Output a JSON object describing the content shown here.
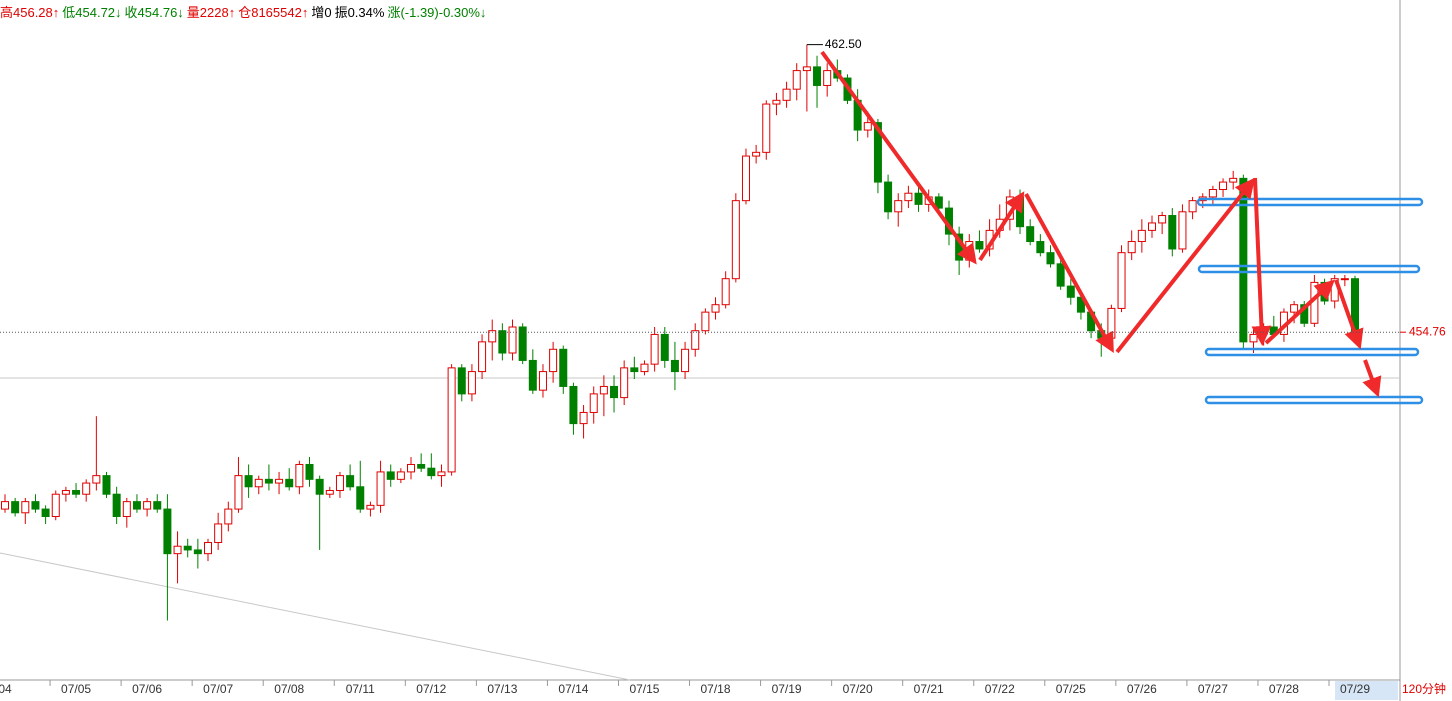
{
  "chart_data": {
    "type": "candlestick",
    "header": [
      {
        "text": "高456.28↑",
        "color": "#e00000"
      },
      {
        "text": "低454.72↓",
        "color": "#008000"
      },
      {
        "text": "收454.76↓",
        "color": "#008000"
      },
      {
        "text": "量2228↑",
        "color": "#e00000"
      },
      {
        "text": "仓8165542↑",
        "color": "#e00000"
      },
      {
        "text": "增0",
        "color": "#000000"
      },
      {
        "text": "振0.34%",
        "color": "#000000"
      },
      {
        "text": "涨(-1.39)-0.30%↓",
        "color": "#008000"
      }
    ],
    "period": "120分钟",
    "max_label": {
      "value": 462.5,
      "label": "462.50"
    },
    "up_color": "#e00000",
    "down_color": "#008000",
    "ylim": [
      445.4,
      463.7
    ],
    "categories": [
      "04",
      null,
      null,
      null,
      null,
      null,
      null,
      "07/05",
      null,
      null,
      null,
      null,
      null,
      null,
      "07/06",
      null,
      null,
      null,
      null,
      null,
      null,
      "07/07",
      null,
      null,
      null,
      null,
      null,
      null,
      "07/08",
      null,
      null,
      null,
      null,
      null,
      null,
      "07/11",
      null,
      null,
      null,
      null,
      null,
      null,
      "07/12",
      null,
      null,
      null,
      null,
      null,
      null,
      "07/13",
      null,
      null,
      null,
      null,
      null,
      null,
      "07/14",
      null,
      null,
      null,
      null,
      null,
      null,
      "07/15",
      null,
      null,
      null,
      null,
      null,
      null,
      "07/18",
      null,
      null,
      null,
      null,
      null,
      null,
      "07/19",
      null,
      null,
      null,
      null,
      null,
      null,
      "07/20",
      null,
      null,
      null,
      null,
      null,
      null,
      "07/21",
      null,
      null,
      null,
      null,
      null,
      null,
      "07/22",
      null,
      null,
      null,
      null,
      null,
      null,
      "07/25",
      null,
      null,
      null,
      null,
      null,
      null,
      "07/26",
      null,
      null,
      null,
      null,
      null,
      null,
      "07/27",
      null,
      null,
      null,
      null,
      null,
      null,
      "07/28",
      null,
      null,
      null,
      null,
      null,
      null,
      "07/29"
    ],
    "candles": [
      [
        450.0,
        450.4,
        449.9,
        450.2
      ],
      [
        450.2,
        450.3,
        449.8,
        449.9
      ],
      [
        449.9,
        450.3,
        449.6,
        450.2
      ],
      [
        450.2,
        450.4,
        449.9,
        450.0
      ],
      [
        450.0,
        450.1,
        449.6,
        449.8
      ],
      [
        449.8,
        450.5,
        449.7,
        450.4
      ],
      [
        450.4,
        450.6,
        450.2,
        450.5
      ],
      [
        450.5,
        450.7,
        450.3,
        450.4
      ],
      [
        450.4,
        450.8,
        450.2,
        450.7
      ],
      [
        450.7,
        452.5,
        450.5,
        450.9
      ],
      [
        450.9,
        451.0,
        450.3,
        450.4
      ],
      [
        450.4,
        450.6,
        449.6,
        449.8
      ],
      [
        449.8,
        450.3,
        449.5,
        450.2
      ],
      [
        450.2,
        450.4,
        449.9,
        450.0
      ],
      [
        450.0,
        450.3,
        449.8,
        450.2
      ],
      [
        450.2,
        450.4,
        449.9,
        450.0
      ],
      [
        450.0,
        450.4,
        447.0,
        448.8
      ],
      [
        448.8,
        449.4,
        448.0,
        449.0
      ],
      [
        449.0,
        449.2,
        448.7,
        448.9
      ],
      [
        448.9,
        449.2,
        448.4,
        448.8
      ],
      [
        448.8,
        449.2,
        448.6,
        449.1
      ],
      [
        449.1,
        449.9,
        448.9,
        449.6
      ],
      [
        449.6,
        450.2,
        449.4,
        450.0
      ],
      [
        450.0,
        451.4,
        449.9,
        450.9
      ],
      [
        450.9,
        451.2,
        450.3,
        450.6
      ],
      [
        450.6,
        450.9,
        450.4,
        450.8
      ],
      [
        450.8,
        451.2,
        450.5,
        450.7
      ],
      [
        450.7,
        451.0,
        450.4,
        450.8
      ],
      [
        450.8,
        451.1,
        450.5,
        450.6
      ],
      [
        450.6,
        451.3,
        450.4,
        451.2
      ],
      [
        451.2,
        451.4,
        450.6,
        450.8
      ],
      [
        450.8,
        450.9,
        448.9,
        450.4
      ],
      [
        450.4,
        450.6,
        450.3,
        450.5
      ],
      [
        450.5,
        451.0,
        450.3,
        450.9
      ],
      [
        450.9,
        451.2,
        450.5,
        450.6
      ],
      [
        450.6,
        451.3,
        449.9,
        450.0
      ],
      [
        450.0,
        450.2,
        449.8,
        450.1
      ],
      [
        450.1,
        451.3,
        449.9,
        451.0
      ],
      [
        451.0,
        451.2,
        450.6,
        450.8
      ],
      [
        450.8,
        451.1,
        450.7,
        451.0
      ],
      [
        451.0,
        451.4,
        450.8,
        451.2
      ],
      [
        451.2,
        451.5,
        451.0,
        451.1
      ],
      [
        451.1,
        451.5,
        450.8,
        450.9
      ],
      [
        450.9,
        451.2,
        450.6,
        451.0
      ],
      [
        451.0,
        453.9,
        450.9,
        453.8
      ],
      [
        453.8,
        453.9,
        452.9,
        453.1
      ],
      [
        453.1,
        453.9,
        452.9,
        453.7
      ],
      [
        453.7,
        454.7,
        453.5,
        454.5
      ],
      [
        454.5,
        455.1,
        454.0,
        454.8
      ],
      [
        454.8,
        455.0,
        454.0,
        454.2
      ],
      [
        454.2,
        455.1,
        454.0,
        454.9
      ],
      [
        454.9,
        455.0,
        453.9,
        454.0
      ],
      [
        454.0,
        454.3,
        453.1,
        453.2
      ],
      [
        453.2,
        453.9,
        453.0,
        453.7
      ],
      [
        453.7,
        454.5,
        453.4,
        454.3
      ],
      [
        454.3,
        454.4,
        453.1,
        453.3
      ],
      [
        453.3,
        453.4,
        452.0,
        452.3
      ],
      [
        452.3,
        452.8,
        451.9,
        452.6
      ],
      [
        452.6,
        453.3,
        452.3,
        453.1
      ],
      [
        453.1,
        453.6,
        452.5,
        453.3
      ],
      [
        453.3,
        453.6,
        452.6,
        453.0
      ],
      [
        453.0,
        454.0,
        452.8,
        453.8
      ],
      [
        453.8,
        454.1,
        453.5,
        453.7
      ],
      [
        453.7,
        454.0,
        453.6,
        453.9
      ],
      [
        453.9,
        454.9,
        453.7,
        454.7
      ],
      [
        454.7,
        454.9,
        453.8,
        454.0
      ],
      [
        454.0,
        454.5,
        453.2,
        453.7
      ],
      [
        453.7,
        454.5,
        453.5,
        454.3
      ],
      [
        454.3,
        455.0,
        454.1,
        454.8
      ],
      [
        454.8,
        455.4,
        454.7,
        455.3
      ],
      [
        455.3,
        455.7,
        455.1,
        455.5
      ],
      [
        455.5,
        456.4,
        455.4,
        456.2
      ],
      [
        456.2,
        458.5,
        456.1,
        458.3
      ],
      [
        458.3,
        459.7,
        458.2,
        459.5
      ],
      [
        459.5,
        459.8,
        459.3,
        459.6
      ],
      [
        459.6,
        461.0,
        459.4,
        460.9
      ],
      [
        460.9,
        461.2,
        460.6,
        461.0
      ],
      [
        461.0,
        461.5,
        460.8,
        461.3
      ],
      [
        461.3,
        462.0,
        461.0,
        461.8
      ],
      [
        461.8,
        462.5,
        460.7,
        461.9
      ],
      [
        461.9,
        462.2,
        460.8,
        461.4
      ],
      [
        461.4,
        462.0,
        461.1,
        461.8
      ],
      [
        461.8,
        462.1,
        461.5,
        461.6
      ],
      [
        461.6,
        461.7,
        460.9,
        461.0
      ],
      [
        461.0,
        461.3,
        459.9,
        460.2
      ],
      [
        460.2,
        460.7,
        460.0,
        460.4
      ],
      [
        460.4,
        460.5,
        458.5,
        458.8
      ],
      [
        458.8,
        459.0,
        457.8,
        458.0
      ],
      [
        458.0,
        458.5,
        457.6,
        458.3
      ],
      [
        458.3,
        458.7,
        458.1,
        458.5
      ],
      [
        458.5,
        458.8,
        458.0,
        458.2
      ],
      [
        458.2,
        458.6,
        458.0,
        458.4
      ],
      [
        458.4,
        458.5,
        458.0,
        458.1
      ],
      [
        458.1,
        458.3,
        457.1,
        457.4
      ],
      [
        457.4,
        457.6,
        456.3,
        456.7
      ],
      [
        456.7,
        457.4,
        456.5,
        457.2
      ],
      [
        457.2,
        457.5,
        456.9,
        457.0
      ],
      [
        457.0,
        457.8,
        456.8,
        457.5
      ],
      [
        457.5,
        458.2,
        457.3,
        457.8
      ],
      [
        457.8,
        458.6,
        457.5,
        458.4
      ],
      [
        458.4,
        458.6,
        457.4,
        457.6
      ],
      [
        457.6,
        457.8,
        457.1,
        457.2
      ],
      [
        457.2,
        457.4,
        456.8,
        456.9
      ],
      [
        456.9,
        457.1,
        456.5,
        456.6
      ],
      [
        456.6,
        456.8,
        455.9,
        456.0
      ],
      [
        456.0,
        456.2,
        455.5,
        455.7
      ],
      [
        455.7,
        455.9,
        455.1,
        455.3
      ],
      [
        455.3,
        455.4,
        454.6,
        454.8
      ],
      [
        454.8,
        455.0,
        454.1,
        454.6
      ],
      [
        454.6,
        455.5,
        454.5,
        455.4
      ],
      [
        455.4,
        457.1,
        455.3,
        456.9
      ],
      [
        456.9,
        457.5,
        456.7,
        457.2
      ],
      [
        457.2,
        457.8,
        456.9,
        457.5
      ],
      [
        457.5,
        457.9,
        457.3,
        457.7
      ],
      [
        457.7,
        458.0,
        457.4,
        457.9
      ],
      [
        457.9,
        458.1,
        456.8,
        457.0
      ],
      [
        457.0,
        458.2,
        456.9,
        458.0
      ],
      [
        458.0,
        458.4,
        457.8,
        458.3
      ],
      [
        458.3,
        458.5,
        458.1,
        458.4
      ],
      [
        458.4,
        458.7,
        458.2,
        458.6
      ],
      [
        458.6,
        458.9,
        458.4,
        458.8
      ],
      [
        458.8,
        459.1,
        458.6,
        458.9
      ],
      [
        458.9,
        459.0,
        454.3,
        454.5
      ],
      [
        454.5,
        454.9,
        454.2,
        454.7
      ],
      [
        454.7,
        455.0,
        454.4,
        454.9
      ],
      [
        454.9,
        455.2,
        454.6,
        454.7
      ],
      [
        454.7,
        455.4,
        454.5,
        455.3
      ],
      [
        455.3,
        455.6,
        455.0,
        455.5
      ],
      [
        455.5,
        455.6,
        454.9,
        455.0
      ],
      [
        455.0,
        456.3,
        454.9,
        456.1
      ],
      [
        456.1,
        456.2,
        455.5,
        455.6
      ],
      [
        455.6,
        456.3,
        455.4,
        456.2
      ],
      [
        456.2,
        456.3,
        456.0,
        456.2
      ],
      [
        456.2,
        456.28,
        454.72,
        454.76
      ]
    ]
  }
}
